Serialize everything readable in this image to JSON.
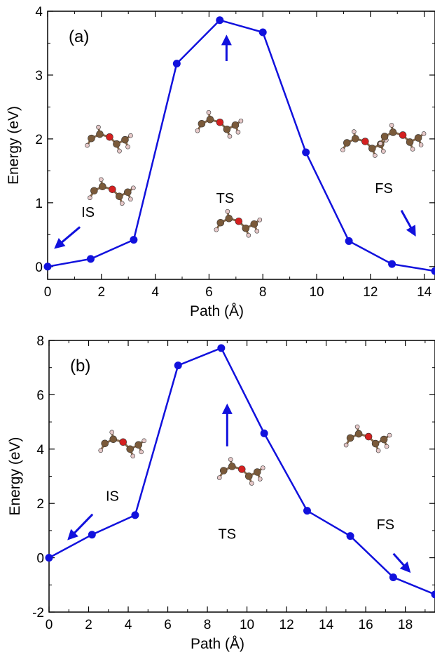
{
  "figure": {
    "background": "#ffffff",
    "line_color": "#1111dd"
  },
  "chart_data": [
    {
      "panel": "(a)",
      "type": "line",
      "xlabel": "Path (Å)",
      "ylabel": "Energy (eV)",
      "xlim": [
        0,
        14.4
      ],
      "ylim": [
        -0.2,
        4
      ],
      "xticks": [
        0,
        2,
        4,
        6,
        8,
        10,
        12,
        14
      ],
      "yticks": [
        0,
        1,
        2,
        3,
        4
      ],
      "series": [
        {
          "color": "#1111dd",
          "x": [
            0,
            1.6,
            3.2,
            4.8,
            6.4,
            8.0,
            9.6,
            11.2,
            12.8,
            14.4
          ],
          "y": [
            0.0,
            0.12,
            0.42,
            3.18,
            3.86,
            3.67,
            1.79,
            0.4,
            0.04,
            -0.07
          ]
        }
      ],
      "annotations": [
        {
          "text": "IS",
          "x": 1.5,
          "y": 0.78
        },
        {
          "text": "TS",
          "x": 6.6,
          "y": 1.0
        },
        {
          "text": "FS",
          "x": 12.5,
          "y": 1.15
        }
      ],
      "arrows": [
        {
          "from": [
            1.2,
            0.62
          ],
          "to": [
            0.3,
            0.3
          ]
        },
        {
          "from": [
            6.65,
            3.22
          ],
          "to": [
            6.65,
            3.6
          ]
        },
        {
          "from": [
            13.15,
            0.88
          ],
          "to": [
            13.65,
            0.5
          ]
        }
      ],
      "molecules": [
        {
          "x": 2.2,
          "y": 1.92
        },
        {
          "x": 2.3,
          "y": 1.1
        },
        {
          "x": 6.3,
          "y": 2.15
        },
        {
          "x": 7.0,
          "y": 0.6
        },
        {
          "x": 11.7,
          "y": 1.85
        },
        {
          "x": 13.1,
          "y": 1.95
        }
      ],
      "grid": false,
      "legend": "none"
    },
    {
      "panel": "(b)",
      "type": "line",
      "xlabel": "Path (Å)",
      "ylabel": "Energy (eV)",
      "xlim": [
        0,
        19.5
      ],
      "ylim": [
        -2,
        8
      ],
      "xticks": [
        0,
        2,
        4,
        6,
        8,
        10,
        12,
        14,
        16,
        18
      ],
      "yticks": [
        -2,
        0,
        2,
        4,
        6,
        8
      ],
      "series": [
        {
          "color": "#1111dd",
          "x": [
            0,
            2.17,
            4.35,
            6.52,
            8.7,
            10.87,
            13.04,
            15.22,
            17.39,
            19.5
          ],
          "y": [
            0.0,
            0.85,
            1.57,
            7.08,
            7.72,
            4.58,
            1.73,
            0.8,
            -0.72,
            -1.35
          ]
        }
      ],
      "annotations": [
        {
          "text": "IS",
          "x": 3.2,
          "y": 2.1
        },
        {
          "text": "TS",
          "x": 9.0,
          "y": 0.7
        },
        {
          "text": "FS",
          "x": 17.0,
          "y": 1.05
        }
      ],
      "arrows": [
        {
          "from": [
            2.2,
            1.6
          ],
          "to": [
            1.0,
            0.7
          ]
        },
        {
          "from": [
            9.0,
            4.1
          ],
          "to": [
            9.0,
            5.6
          ]
        },
        {
          "from": [
            17.4,
            0.15
          ],
          "to": [
            18.2,
            -0.5
          ]
        }
      ],
      "molecules": [
        {
          "x": 3.6,
          "y": 4.0
        },
        {
          "x": 9.6,
          "y": 3.0
        },
        {
          "x": 16.0,
          "y": 4.2
        }
      ],
      "grid": false,
      "legend": "none"
    }
  ]
}
